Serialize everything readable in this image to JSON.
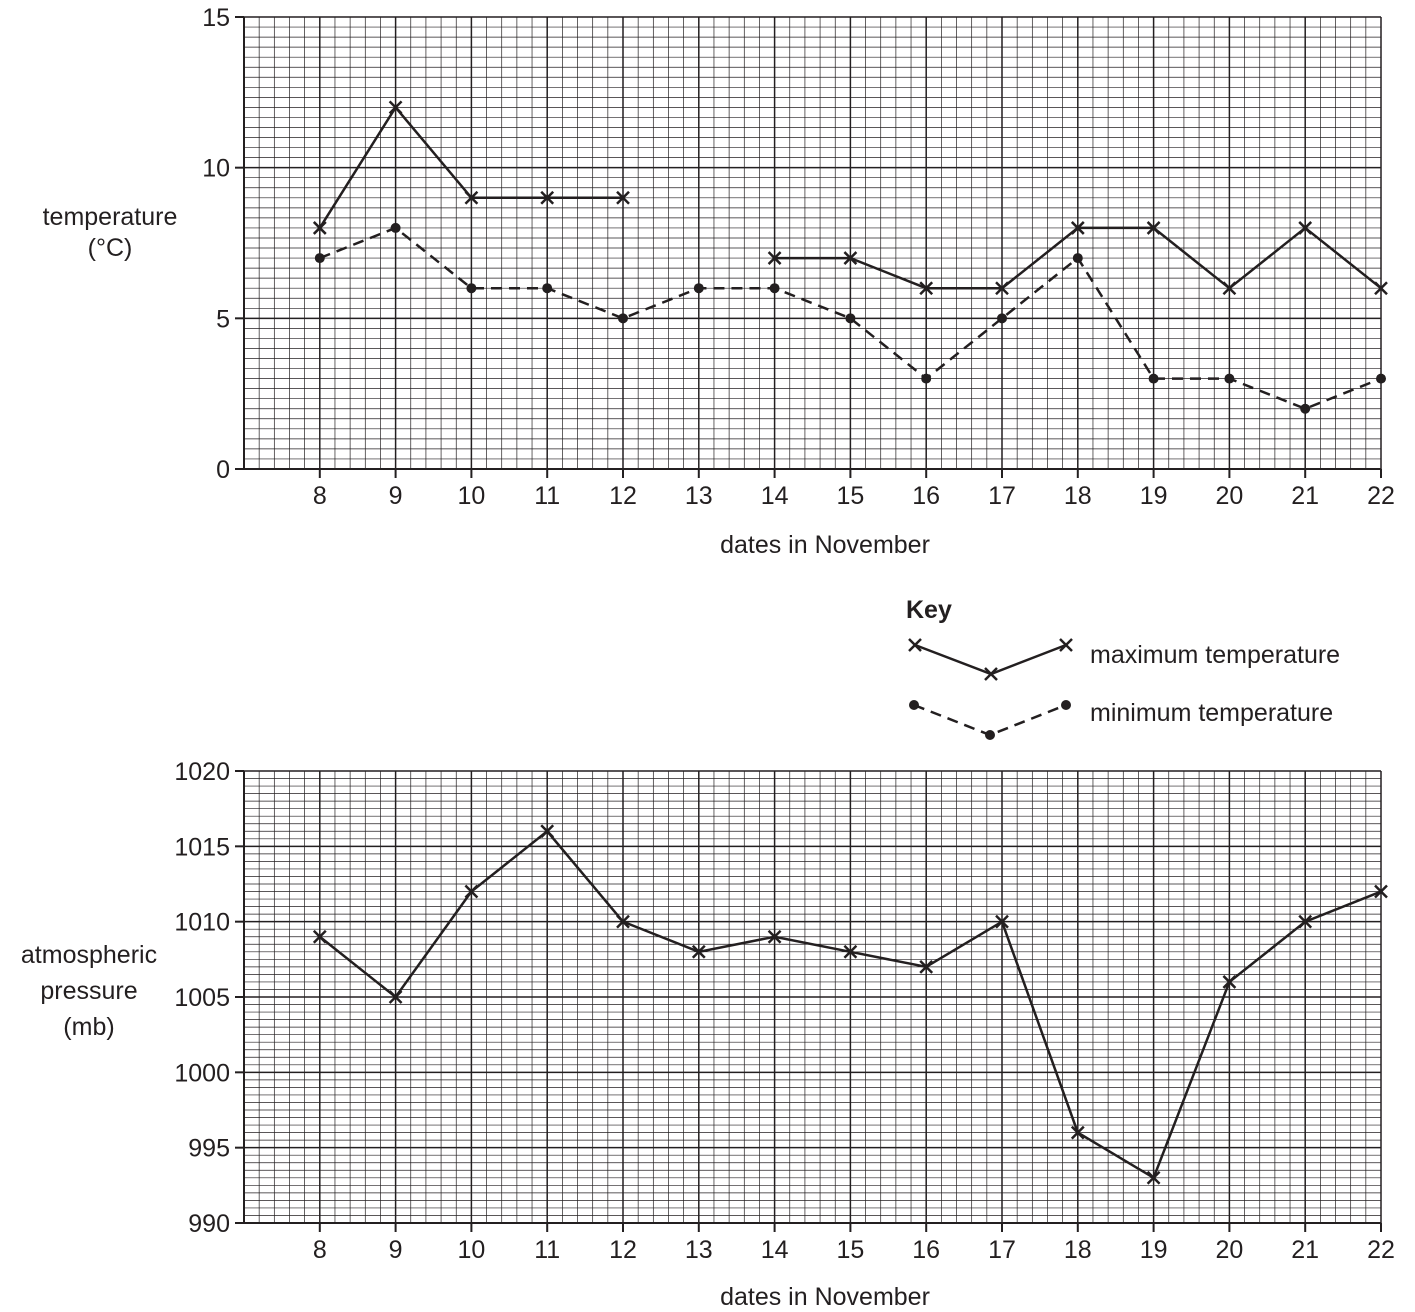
{
  "chart_data": [
    {
      "type": "line",
      "title": "",
      "xlabel": "dates in November",
      "ylabel_lines": [
        "temperature",
        "(°C)"
      ],
      "x_ticks": [
        8,
        9,
        10,
        11,
        12,
        13,
        14,
        15,
        16,
        17,
        18,
        19,
        20,
        21,
        22
      ],
      "y_ticks": [
        0,
        5,
        10,
        15
      ],
      "xlim": [
        7,
        22
      ],
      "ylim": [
        0,
        15
      ],
      "grid": true,
      "series": [
        {
          "name": "maximum temperature",
          "marker": "x",
          "line": "solid",
          "segments": [
            {
              "x": [
                8,
                9,
                10,
                11,
                12
              ],
              "y": [
                8,
                12,
                9,
                9,
                9
              ]
            },
            {
              "x": [
                14,
                15,
                16,
                17,
                18,
                19,
                20,
                21,
                22
              ],
              "y": [
                7,
                7,
                6,
                6,
                8,
                8,
                6,
                8,
                6
              ]
            }
          ]
        },
        {
          "name": "minimum temperature",
          "marker": "dot",
          "line": "dashed",
          "segments": [
            {
              "x": [
                8,
                9,
                10,
                11,
                12,
                13,
                14,
                15,
                16,
                17,
                18,
                19,
                20,
                21,
                22
              ],
              "y": [
                7,
                8,
                6,
                6,
                5,
                6,
                6,
                5,
                3,
                5,
                7,
                3,
                3,
                2,
                3
              ]
            }
          ]
        }
      ],
      "legend": {
        "title": "Key",
        "placement": "bottom-right",
        "entries": [
          "maximum temperature",
          "minimum temperature"
        ]
      }
    },
    {
      "type": "line",
      "title": "",
      "xlabel": "dates in November",
      "ylabel_lines": [
        "atmospheric",
        "pressure",
        "(mb)"
      ],
      "x_ticks": [
        8,
        9,
        10,
        11,
        12,
        13,
        14,
        15,
        16,
        17,
        18,
        19,
        20,
        21,
        22
      ],
      "y_ticks": [
        990,
        995,
        1000,
        1005,
        1010,
        1015,
        1020
      ],
      "xlim": [
        7,
        22
      ],
      "ylim": [
        990,
        1020
      ],
      "grid": true,
      "series": [
        {
          "name": "",
          "marker": "x",
          "line": "solid",
          "segments": [
            {
              "x": [
                8,
                9,
                10,
                11,
                12,
                13,
                14,
                15,
                16,
                17,
                18,
                19,
                20,
                21,
                22
              ],
              "y": [
                1009,
                1005,
                1012,
                1016,
                1010,
                1008,
                1009,
                1008,
                1007,
                1010,
                996,
                993,
                1006,
                1010,
                1012
              ]
            }
          ]
        }
      ]
    }
  ]
}
